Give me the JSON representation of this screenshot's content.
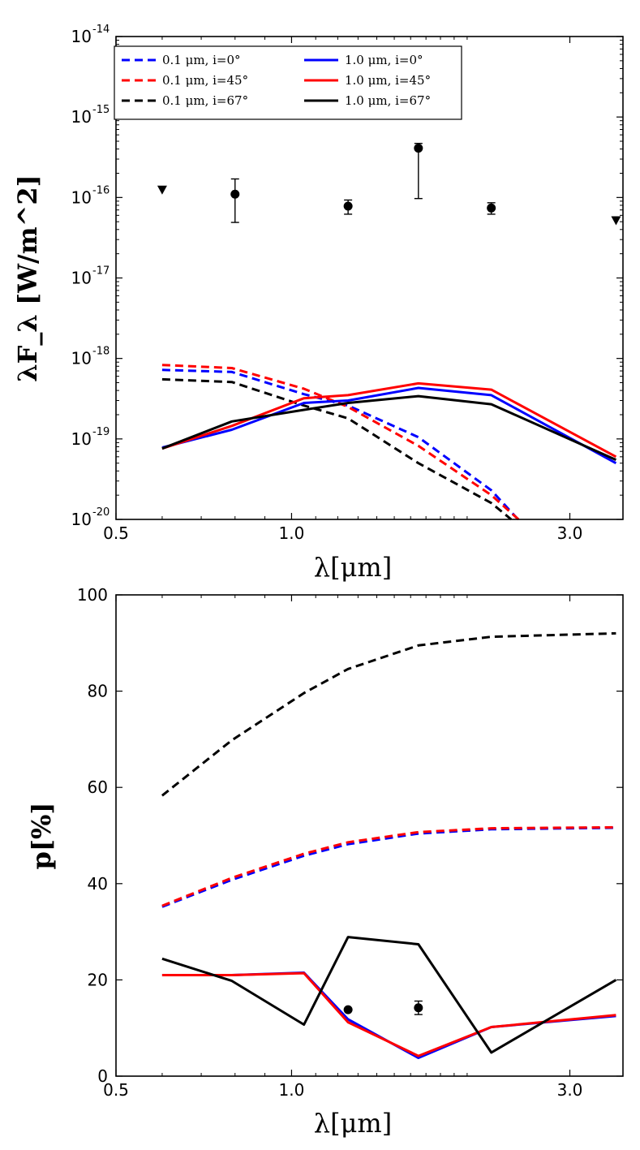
{
  "chart_data": [
    {
      "type": "line",
      "title": "",
      "xlabel": "λ[μm]",
      "ylabel": "λF_λ [W/m^2]",
      "xscale": "log",
      "yscale": "log",
      "xlim": [
        0.5,
        3.7
      ],
      "ylim": [
        1e-20,
        1e-14
      ],
      "xticks": [
        {
          "v": 0.5,
          "label": "0.5"
        },
        {
          "v": 1.0,
          "label": "1.0"
        },
        {
          "v": 3.0,
          "label": "3.0"
        }
      ],
      "yticks": [
        {
          "v": 1e-20,
          "base": "10",
          "exp": "-20"
        },
        {
          "v": 1e-19,
          "base": "10",
          "exp": "-19"
        },
        {
          "v": 1e-18,
          "base": "10",
          "exp": "-18"
        },
        {
          "v": 1e-17,
          "base": "10",
          "exp": "-17"
        },
        {
          "v": 1e-16,
          "base": "10",
          "exp": "-16"
        },
        {
          "v": 1e-15,
          "base": "10",
          "exp": "-15"
        },
        {
          "v": 1e-14,
          "base": "10",
          "exp": "-14"
        }
      ],
      "legend": {
        "position": "top-left",
        "columns": 2
      },
      "series": [
        {
          "name": "0.1 μm, i=0°",
          "color": "#0000ff",
          "dash": true,
          "x": [
            0.6,
            0.79,
            1.05,
            1.25,
            1.65,
            2.2,
            2.43
          ],
          "y": [
            7.2e-19,
            6.8e-19,
            3.6e-19,
            2.6e-19,
            1.05e-19,
            2.3e-20,
            1.05e-20
          ]
        },
        {
          "name": "0.1 μm, i=45°",
          "color": "#ff0000",
          "dash": true,
          "x": [
            0.6,
            0.79,
            1.05,
            1.25,
            1.65,
            2.2,
            2.45
          ],
          "y": [
            8.3e-19,
            7.6e-19,
            4.2e-19,
            2.5e-19,
            8.2e-20,
            2e-20,
            1e-20
          ]
        },
        {
          "name": "0.1 μm, i=67°",
          "color": "#000000",
          "dash": true,
          "x": [
            0.6,
            0.79,
            1.05,
            1.25,
            1.65,
            2.2,
            2.38
          ],
          "y": [
            5.5e-19,
            5.1e-19,
            2.6e-19,
            1.8e-19,
            5e-20,
            1.6e-20,
            1e-20
          ]
        },
        {
          "name": "1.0 μm, i=0°",
          "color": "#0000ff",
          "dash": false,
          "x": [
            0.6,
            0.79,
            1.05,
            1.25,
            1.65,
            2.2,
            3.6
          ],
          "y": [
            7.8e-20,
            1.3e-19,
            2.8e-19,
            3e-19,
            4.3e-19,
            3.5e-19,
            5e-20
          ]
        },
        {
          "name": "1.0 μm, i=45°",
          "color": "#ff0000",
          "dash": false,
          "x": [
            0.6,
            0.79,
            1.05,
            1.25,
            1.65,
            2.2,
            3.6
          ],
          "y": [
            7.6e-20,
            1.45e-19,
            3.2e-19,
            3.5e-19,
            4.9e-19,
            4.1e-19,
            6e-20
          ]
        },
        {
          "name": "1.0 μm, i=67°",
          "color": "#000000",
          "dash": false,
          "x": [
            0.6,
            0.79,
            1.05,
            1.25,
            1.65,
            2.2,
            3.6
          ],
          "y": [
            7.6e-20,
            1.65e-19,
            2.3e-19,
            2.8e-19,
            3.4e-19,
            2.7e-19,
            5.5e-20
          ]
        }
      ],
      "observations": [
        {
          "x": 0.8,
          "y": 1.1e-16,
          "ylo": 4.9e-17,
          "yhi": 1.7e-16
        },
        {
          "x": 1.25,
          "y": 7.8e-17,
          "ylo": 6.2e-17,
          "yhi": 9.3e-17
        },
        {
          "x": 1.65,
          "y": 4.1e-16,
          "ylo": 9.7e-17,
          "yhi": 4.7e-16
        },
        {
          "x": 2.2,
          "y": 7.4e-17,
          "ylo": 6.2e-17,
          "yhi": 8.6e-17
        }
      ],
      "upper_limits": [
        {
          "x": 0.6,
          "y": 1.25e-16
        },
        {
          "x": 3.6,
          "y": 5.2e-17
        }
      ]
    },
    {
      "type": "line",
      "title": "",
      "xlabel": "λ[μm]",
      "ylabel": "p[%]",
      "xscale": "log",
      "yscale": "linear",
      "xlim": [
        0.5,
        3.7
      ],
      "ylim": [
        0,
        100
      ],
      "xticks": [
        {
          "v": 0.5,
          "label": "0.5"
        },
        {
          "v": 1.0,
          "label": "1.0"
        },
        {
          "v": 3.0,
          "label": "3.0"
        }
      ],
      "yticks": [
        {
          "v": 0,
          "label": "0"
        },
        {
          "v": 20,
          "label": "20"
        },
        {
          "v": 40,
          "label": "40"
        },
        {
          "v": 60,
          "label": "60"
        },
        {
          "v": 80,
          "label": "80"
        },
        {
          "v": 100,
          "label": "100"
        }
      ],
      "series": [
        {
          "name": "0.1 μm, i=0°",
          "color": "#0000ff",
          "dash": true,
          "x": [
            0.6,
            0.79,
            1.05,
            1.25,
            1.65,
            2.2,
            3.6
          ],
          "y": [
            35.2,
            40.8,
            45.8,
            48.2,
            50.4,
            51.3,
            51.6
          ]
        },
        {
          "name": "0.1 μm, i=45°",
          "color": "#ff0000",
          "dash": true,
          "x": [
            0.6,
            0.79,
            1.05,
            1.25,
            1.65,
            2.2,
            3.6
          ],
          "y": [
            35.4,
            41.2,
            46.2,
            48.6,
            50.7,
            51.5,
            51.7
          ]
        },
        {
          "name": "0.1 μm, i=67°",
          "color": "#000000",
          "dash": true,
          "x": [
            0.6,
            0.79,
            1.05,
            1.25,
            1.65,
            2.2,
            3.6
          ],
          "y": [
            58.3,
            69.8,
            79.6,
            84.6,
            89.5,
            91.3,
            92.0
          ]
        },
        {
          "name": "1.0 μm, i=0°",
          "color": "#0000ff",
          "dash": false,
          "x": [
            0.6,
            0.79,
            1.05,
            1.25,
            1.65,
            2.2,
            3.6
          ],
          "y": [
            21.0,
            21.0,
            21.5,
            11.8,
            3.8,
            10.2,
            12.5
          ]
        },
        {
          "name": "1.0 μm, i=45°",
          "color": "#ff0000",
          "dash": false,
          "x": [
            0.6,
            0.79,
            1.05,
            1.25,
            1.65,
            2.2,
            3.6
          ],
          "y": [
            21.0,
            21.0,
            21.4,
            11.2,
            4.2,
            10.2,
            12.7
          ]
        },
        {
          "name": "1.0 μm, i=67°",
          "color": "#000000",
          "dash": false,
          "x": [
            0.6,
            0.79,
            1.05,
            1.25,
            1.65,
            2.2,
            3.6
          ],
          "y": [
            24.4,
            19.8,
            10.7,
            28.9,
            27.4,
            4.9,
            20.0
          ]
        }
      ],
      "observations": [
        {
          "x": 1.25,
          "y": 13.8,
          "ylo": 13.8,
          "yhi": 13.8
        },
        {
          "x": 1.65,
          "y": 14.2,
          "ylo": 12.8,
          "yhi": 15.6
        }
      ]
    }
  ]
}
